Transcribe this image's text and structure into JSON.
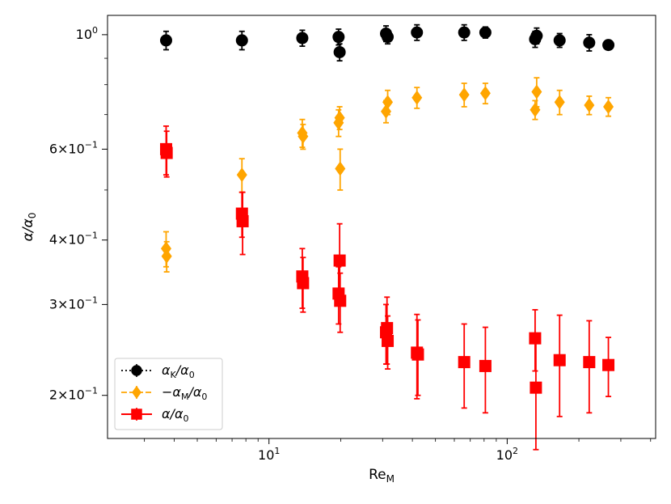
{
  "chart_data": {
    "type": "scatter",
    "title": "",
    "x_scale": "log",
    "y_scale": "log",
    "xlim": [
      2.1,
      420
    ],
    "ylim": [
      0.165,
      1.09
    ],
    "xlabel": {
      "main": "Re",
      "sub": "M"
    },
    "ylabel": {
      "main": "α/α",
      "sub": "0"
    },
    "x_ticks": [
      {
        "value": 10,
        "base": "10",
        "exp": "1"
      },
      {
        "value": 100,
        "base": "10",
        "exp": "2"
      }
    ],
    "y_ticks": [
      {
        "value": 1.0,
        "base": "10",
        "exp": "0",
        "coef": ""
      },
      {
        "value": 0.6,
        "base": "10",
        "exp": "−1",
        "coef": "6×"
      },
      {
        "value": 0.4,
        "base": "10",
        "exp": "−1",
        "coef": "4×"
      },
      {
        "value": 0.3,
        "base": "10",
        "exp": "−1",
        "coef": "3×"
      },
      {
        "value": 0.2,
        "base": "10",
        "exp": "−1",
        "coef": "2×"
      }
    ],
    "legend_position": "lower-left",
    "series": [
      {
        "name": "α_K/α_0",
        "legend": {
          "pre": "",
          "main": "α",
          "sub": "K",
          "post": "/α",
          "sub2": "0"
        },
        "color": "#000000",
        "marker": "circle",
        "linestyle": "dotted",
        "points": [
          {
            "x": 3.7,
            "y": 0.975,
            "err": 0.04
          },
          {
            "x": 7.7,
            "y": 0.975,
            "err": 0.04
          },
          {
            "x": 13.8,
            "y": 0.985,
            "err": 0.035
          },
          {
            "x": 19.6,
            "y": 0.99,
            "err": 0.035
          },
          {
            "x": 19.8,
            "y": 0.925,
            "err": 0.035
          },
          {
            "x": 31.0,
            "y": 1.005,
            "err": 0.035
          },
          {
            "x": 31.5,
            "y": 0.99,
            "err": 0.03
          },
          {
            "x": 41.8,
            "y": 1.01,
            "err": 0.035
          },
          {
            "x": 66,
            "y": 1.01,
            "err": 0.035
          },
          {
            "x": 81,
            "y": 1.01,
            "err": 0.025
          },
          {
            "x": 131,
            "y": 0.98,
            "err": 0.035
          },
          {
            "x": 133,
            "y": 0.995,
            "err": 0.035
          },
          {
            "x": 166,
            "y": 0.975,
            "err": 0.03
          },
          {
            "x": 221,
            "y": 0.965,
            "err": 0.035
          },
          {
            "x": 266,
            "y": 0.955,
            "err": 0.012
          }
        ]
      },
      {
        "name": "−α_M/α_0",
        "legend": {
          "pre": "−",
          "main": "α",
          "sub": "M",
          "post": "/α",
          "sub2": "0"
        },
        "color": "#ffa500",
        "marker": "diamond",
        "linestyle": "dashed",
        "points": [
          {
            "x": 3.7,
            "y": 0.385,
            "err": 0.03
          },
          {
            "x": 3.72,
            "y": 0.372,
            "err": 0.025
          },
          {
            "x": 7.7,
            "y": 0.535,
            "err": 0.04
          },
          {
            "x": 13.8,
            "y": 0.645,
            "err": 0.04
          },
          {
            "x": 13.9,
            "y": 0.635,
            "err": 0.035
          },
          {
            "x": 19.6,
            "y": 0.675,
            "err": 0.04
          },
          {
            "x": 19.8,
            "y": 0.69,
            "err": 0.035
          },
          {
            "x": 19.9,
            "y": 0.55,
            "err": 0.05
          },
          {
            "x": 31.0,
            "y": 0.71,
            "err": 0.035
          },
          {
            "x": 31.5,
            "y": 0.74,
            "err": 0.04
          },
          {
            "x": 41.8,
            "y": 0.755,
            "err": 0.035
          },
          {
            "x": 66,
            "y": 0.765,
            "err": 0.04
          },
          {
            "x": 81,
            "y": 0.77,
            "err": 0.035
          },
          {
            "x": 131,
            "y": 0.715,
            "err": 0.03
          },
          {
            "x": 133,
            "y": 0.775,
            "err": 0.05
          },
          {
            "x": 166,
            "y": 0.74,
            "err": 0.04
          },
          {
            "x": 221,
            "y": 0.73,
            "err": 0.03
          },
          {
            "x": 266,
            "y": 0.725,
            "err": 0.03
          }
        ]
      },
      {
        "name": "α/α_0",
        "legend": {
          "pre": "",
          "main": "α/α",
          "sub": "0",
          "post": "",
          "sub2": ""
        },
        "color": "#ff0000",
        "marker": "square",
        "linestyle": "solid",
        "points": [
          {
            "x": 3.7,
            "y": 0.6,
            "err": 0.065
          },
          {
            "x": 3.72,
            "y": 0.59,
            "err": 0.06
          },
          {
            "x": 7.7,
            "y": 0.45,
            "err": 0.045
          },
          {
            "x": 7.75,
            "y": 0.435,
            "err": 0.06
          },
          {
            "x": 13.8,
            "y": 0.34,
            "err": 0.045
          },
          {
            "x": 13.9,
            "y": 0.33,
            "err": 0.04
          },
          {
            "x": 19.6,
            "y": 0.315,
            "err": 0.04
          },
          {
            "x": 19.8,
            "y": 0.365,
            "err": 0.065
          },
          {
            "x": 19.9,
            "y": 0.305,
            "err": 0.04
          },
          {
            "x": 31.0,
            "y": 0.265,
            "err": 0.035
          },
          {
            "x": 31.3,
            "y": 0.27,
            "err": 0.04
          },
          {
            "x": 31.5,
            "y": 0.255,
            "err": 0.03
          },
          {
            "x": 41.8,
            "y": 0.242,
            "err": 0.045
          },
          {
            "x": 42.2,
            "y": 0.24,
            "err": 0.04
          },
          {
            "x": 66,
            "y": 0.232,
            "err": 0.043
          },
          {
            "x": 81,
            "y": 0.228,
            "err": 0.043
          },
          {
            "x": 131,
            "y": 0.258,
            "err": 0.035
          },
          {
            "x": 132,
            "y": 0.207,
            "err": 0.05
          },
          {
            "x": 166,
            "y": 0.234,
            "err": 0.052
          },
          {
            "x": 221,
            "y": 0.232,
            "err": 0.047
          },
          {
            "x": 266,
            "y": 0.229,
            "err": 0.03
          }
        ]
      }
    ]
  }
}
